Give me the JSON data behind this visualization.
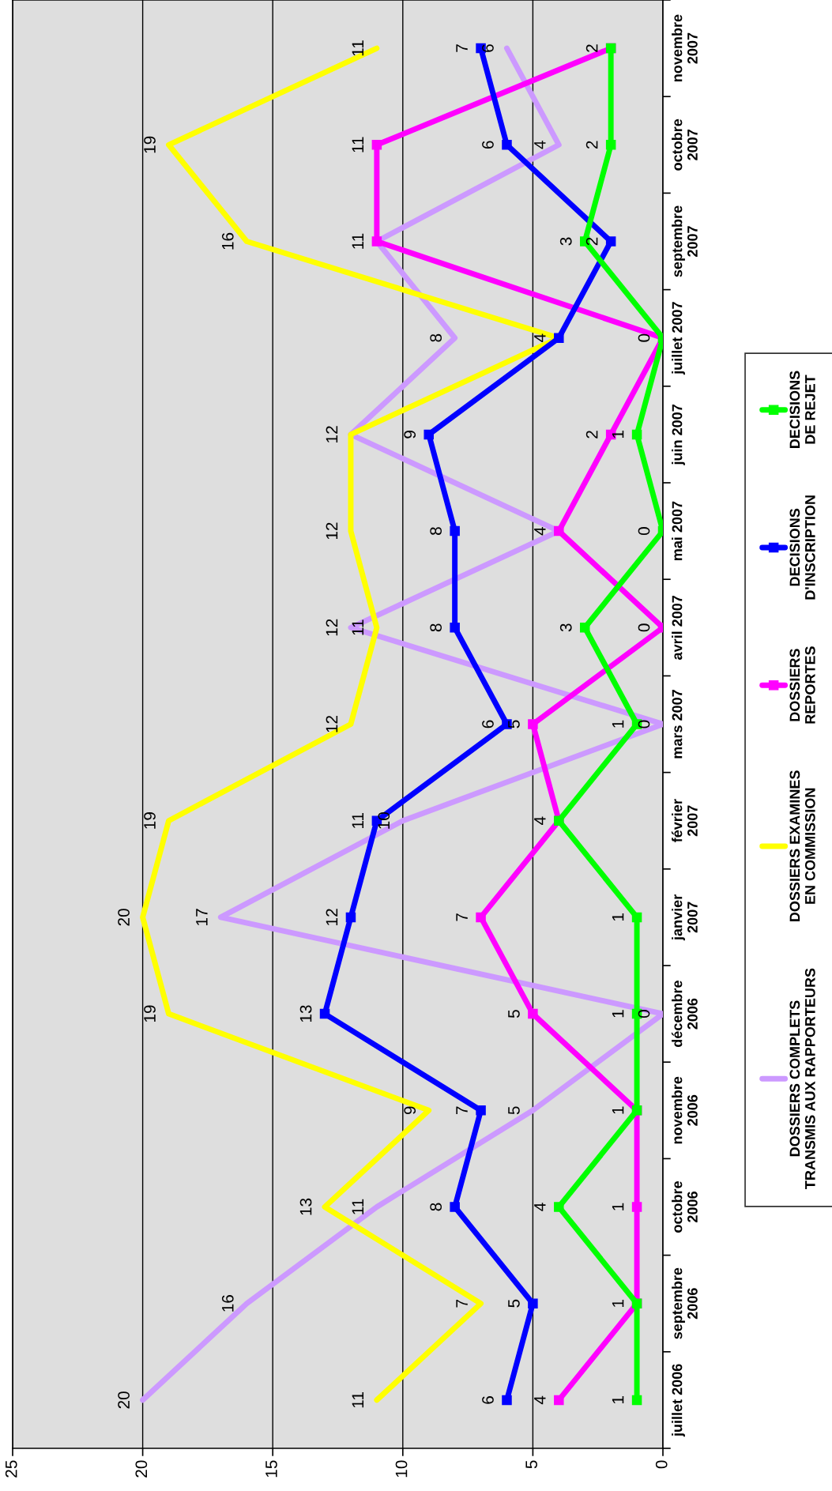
{
  "chart_data": {
    "type": "line",
    "orientation": "horizontal",
    "categories": [
      "novembre\n2007",
      "octobre\n2007",
      "septembre\n2007",
      "juillet 2007",
      "juin 2007",
      "mai 2007",
      "avril 2007",
      "mars 2007",
      "février\n2007",
      "janvier\n2007",
      "décembre\n2006",
      "novembre\n2006",
      "octobre\n2006",
      "septembre\n2006",
      "juillet 2006"
    ],
    "xlim": [
      25,
      0
    ],
    "xticks": [
      0,
      5,
      10,
      15,
      20,
      25
    ],
    "grid": "x",
    "legend": "bottom",
    "data_labels": true,
    "series": [
      {
        "name": "DOSSIERS COMPLETS\nTRANSMIS AUX RAPPORTEURS",
        "color": "#cc99ff",
        "marker": "none",
        "values": [
          6,
          4,
          11,
          8,
          12,
          4,
          12,
          0,
          10,
          17,
          0,
          5,
          11,
          16,
          20
        ],
        "value_labels": [
          "6",
          "4",
          null,
          "8",
          "12",
          null,
          "12",
          "0",
          "10",
          "17",
          "0",
          "5",
          "11",
          "16",
          "20"
        ]
      },
      {
        "name": "DOSSIERS EXAMINES\nEN COMMISSION",
        "color": "#ffff00",
        "marker": "none",
        "values": [
          11,
          19,
          16,
          4,
          12,
          12,
          11,
          12,
          19,
          20,
          19,
          9,
          13,
          7,
          11
        ],
        "value_labels": [
          "11",
          "19",
          "16",
          null,
          null,
          "12",
          "11",
          "12",
          "19",
          "20",
          "19",
          "9",
          "13",
          "7",
          "11"
        ]
      },
      {
        "name": "DOSSIERS\nREPORTES",
        "color": "#ff00ff",
        "marker": "square",
        "values": [
          2,
          11,
          11,
          0,
          2,
          4,
          0,
          5,
          4,
          7,
          5,
          1,
          1,
          1,
          4
        ]
      },
      {
        "name": "DECISIONS\nD'INSCRIPTION",
        "color": "#0000ff",
        "marker": "square",
        "values": [
          7,
          6,
          2,
          4,
          9,
          8,
          8,
          6,
          11,
          12,
          13,
          7,
          8,
          5,
          6
        ]
      },
      {
        "name": "DECISIONS\nDE REJET",
        "color": "#00ff00",
        "marker": "square",
        "values": [
          2,
          2,
          3,
          0,
          1,
          0,
          3,
          1,
          4,
          1,
          1,
          1,
          4,
          1,
          1
        ],
        "value_labels": [
          null,
          "2",
          "3",
          null,
          "1",
          "0",
          "3",
          "1",
          null,
          "1",
          "1",
          null,
          "4",
          null,
          "1"
        ]
      }
    ]
  }
}
